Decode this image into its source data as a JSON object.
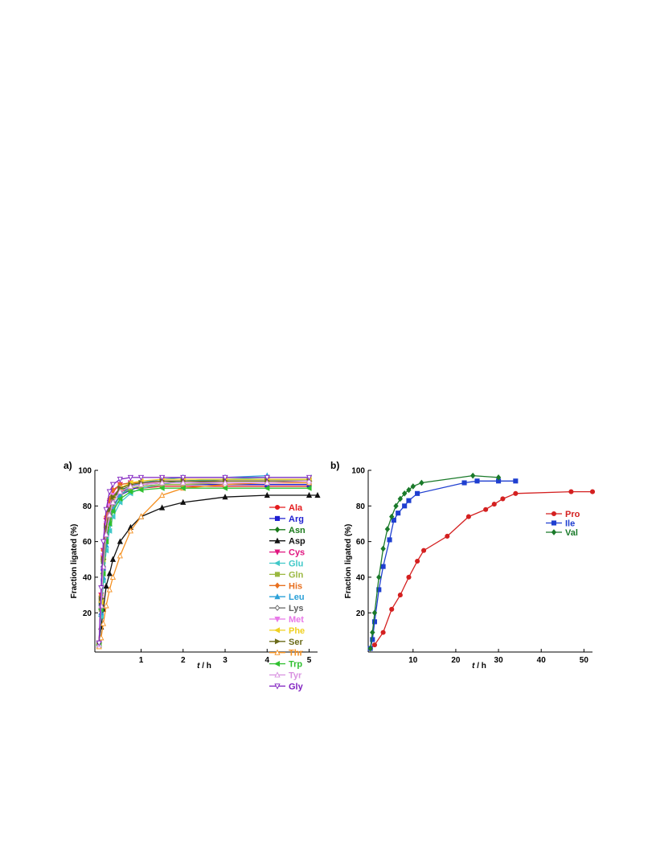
{
  "chart_data": [
    {
      "panel": "a)",
      "type": "line",
      "xlabel_italic": "t",
      "xlabel_unit": "/ h",
      "ylabel": "Fraction ligated (%)",
      "xlim": [
        -0.1,
        5.2
      ],
      "ylim": [
        -2,
        100
      ],
      "xticks": [
        1,
        2,
        3,
        4,
        5
      ],
      "yticks": [
        20,
        40,
        60,
        80,
        100
      ],
      "legend_position": "right",
      "series": [
        {
          "name": "Ala",
          "color": "#e41a1c",
          "marker": "circle",
          "x": [
            0,
            0.05,
            0.1,
            0.17,
            0.25,
            0.33,
            0.5,
            0.75,
            1,
            1.5,
            2,
            3,
            4,
            5
          ],
          "y": [
            2,
            28,
            52,
            70,
            80,
            85,
            88,
            90,
            90,
            91,
            91,
            91,
            91,
            91
          ]
        },
        {
          "name": "Arg",
          "color": "#1f1fd0",
          "marker": "square",
          "x": [
            0,
            0.05,
            0.1,
            0.17,
            0.25,
            0.33,
            0.5,
            0.75,
            1,
            1.5,
            2,
            3,
            4,
            5
          ],
          "y": [
            3,
            25,
            45,
            62,
            74,
            80,
            86,
            89,
            91,
            92,
            92,
            92,
            92,
            92
          ]
        },
        {
          "name": "Asn",
          "color": "#1a7a1a",
          "marker": "diamond",
          "x": [
            0,
            0.05,
            0.1,
            0.17,
            0.25,
            0.33,
            0.5,
            0.75,
            1,
            1.5,
            2,
            3,
            4,
            5
          ],
          "y": [
            3,
            25,
            48,
            68,
            78,
            84,
            89,
            91,
            92,
            93,
            94,
            95,
            95,
            95
          ]
        },
        {
          "name": "Asp",
          "color": "#111111",
          "marker": "triangle",
          "x": [
            0,
            0.05,
            0.1,
            0.17,
            0.25,
            0.33,
            0.5,
            0.75,
            1,
            1.5,
            2,
            3,
            4,
            5,
            5.2
          ],
          "y": [
            2,
            12,
            22,
            35,
            42,
            50,
            60,
            68,
            74,
            79,
            82,
            85,
            86,
            86,
            86
          ]
        },
        {
          "name": "Cys",
          "color": "#e0157f",
          "marker": "triangle-down",
          "x": [
            0,
            0.05,
            0.1,
            0.17,
            0.25,
            0.33,
            0.5,
            0.75,
            1,
            1.5,
            2,
            3,
            4,
            5
          ],
          "y": [
            3,
            30,
            55,
            72,
            82,
            88,
            92,
            93,
            93,
            94,
            94,
            94,
            94,
            94
          ]
        },
        {
          "name": "Glu",
          "color": "#40c8c8",
          "marker": "triangle-left",
          "x": [
            0,
            0.05,
            0.1,
            0.17,
            0.25,
            0.33,
            0.5,
            0.75,
            1,
            1.5,
            2,
            3,
            4,
            5
          ],
          "y": [
            2,
            18,
            38,
            55,
            66,
            74,
            82,
            87,
            90,
            92,
            94,
            95,
            96,
            96
          ]
        },
        {
          "name": "Gln",
          "color": "#9ab840",
          "marker": "square",
          "x": [
            0,
            0.05,
            0.1,
            0.17,
            0.25,
            0.33,
            0.5,
            0.75,
            1,
            1.5,
            2,
            3,
            4,
            5
          ],
          "y": [
            2,
            22,
            42,
            60,
            72,
            79,
            86,
            90,
            91,
            92,
            92,
            93,
            93,
            93
          ]
        },
        {
          "name": "His",
          "color": "#e87020",
          "marker": "diamond",
          "x": [
            0,
            0.05,
            0.1,
            0.17,
            0.25,
            0.33,
            0.5,
            0.75,
            1,
            1.5,
            2,
            3,
            4,
            5
          ],
          "y": [
            3,
            30,
            55,
            74,
            84,
            89,
            92,
            93,
            93,
            93,
            93,
            93,
            93,
            93
          ]
        },
        {
          "name": "Leu",
          "color": "#2aa0d8",
          "marker": "triangle",
          "x": [
            0,
            0.05,
            0.1,
            0.17,
            0.25,
            0.33,
            0.5,
            0.75,
            1,
            1.5,
            2,
            3,
            4
          ],
          "y": [
            2,
            20,
            40,
            58,
            70,
            78,
            86,
            91,
            93,
            95,
            96,
            96,
            97
          ]
        },
        {
          "name": "Lys",
          "color": "#606060",
          "marker": "diamond-open",
          "x": [
            0,
            0.05,
            0.1,
            0.17,
            0.25,
            0.33,
            0.5,
            0.75,
            1,
            1.5,
            2,
            3,
            4,
            5
          ],
          "y": [
            2,
            24,
            46,
            64,
            75,
            82,
            88,
            91,
            92,
            93,
            93,
            94,
            94,
            94
          ]
        },
        {
          "name": "Met",
          "color": "#e878e8",
          "marker": "triangle-down",
          "x": [
            0,
            0.05,
            0.1,
            0.17,
            0.25,
            0.33,
            0.5,
            0.75,
            1,
            1.5,
            2,
            3,
            4,
            5
          ],
          "y": [
            3,
            28,
            52,
            70,
            80,
            86,
            90,
            92,
            93,
            93,
            93,
            93,
            93,
            93
          ]
        },
        {
          "name": "Phe",
          "color": "#f0d020",
          "marker": "triangle-left",
          "x": [
            0,
            0.05,
            0.1,
            0.17,
            0.25,
            0.33,
            0.5,
            0.75,
            1,
            1.5,
            2,
            3,
            4,
            5
          ],
          "y": [
            2,
            26,
            50,
            68,
            78,
            85,
            90,
            93,
            94,
            95,
            95,
            95,
            95,
            95
          ]
        },
        {
          "name": "Ser",
          "color": "#6b6b1a",
          "marker": "triangle-right",
          "x": [
            0,
            0.05,
            0.1,
            0.17,
            0.25,
            0.33,
            0.5,
            0.75,
            1,
            1.5,
            2,
            3,
            4,
            5
          ],
          "y": [
            3,
            28,
            50,
            68,
            78,
            85,
            90,
            92,
            93,
            94,
            94,
            94,
            94,
            94
          ]
        },
        {
          "name": "Thr",
          "color": "#f59020",
          "marker": "triangle-open",
          "x": [
            0,
            0.05,
            0.1,
            0.17,
            0.25,
            0.33,
            0.5,
            0.75,
            1,
            1.5,
            2,
            3,
            4,
            5
          ],
          "y": [
            1,
            6,
            14,
            24,
            33,
            40,
            52,
            66,
            74,
            86,
            90,
            92,
            93,
            93
          ]
        },
        {
          "name": "Trp",
          "color": "#30c030",
          "marker": "triangle-left",
          "x": [
            0,
            0.05,
            0.1,
            0.17,
            0.25,
            0.33,
            0.5,
            0.75,
            1,
            1.5,
            2,
            3,
            4,
            5
          ],
          "y": [
            2,
            22,
            42,
            60,
            70,
            77,
            84,
            88,
            89,
            90,
            90,
            90,
            90,
            90
          ]
        },
        {
          "name": "Tyr",
          "color": "#d890e0",
          "marker": "triangle-open",
          "x": [
            0,
            0.05,
            0.1,
            0.17,
            0.25,
            0.33,
            0.5,
            0.75,
            1,
            1.5,
            2,
            3,
            4,
            5
          ],
          "y": [
            2,
            24,
            46,
            64,
            75,
            82,
            88,
            91,
            92,
            93,
            93,
            93,
            93,
            94
          ]
        },
        {
          "name": "Gly",
          "color": "#8020c0",
          "marker": "triangle-down-open",
          "x": [
            0,
            0.05,
            0.1,
            0.17,
            0.25,
            0.33,
            0.5,
            0.75,
            1,
            1.5,
            2,
            3,
            4,
            5
          ],
          "y": [
            3,
            34,
            60,
            78,
            88,
            92,
            95,
            96,
            96,
            96,
            96,
            96,
            96,
            96
          ]
        }
      ]
    },
    {
      "panel": "b)",
      "type": "line",
      "xlabel_italic": "t",
      "xlabel_unit": "/ h",
      "ylabel": "Fraction ligated (%)",
      "xlim": [
        -0.5,
        52
      ],
      "ylim": [
        -2,
        100
      ],
      "xticks": [
        10,
        20,
        30,
        40,
        50
      ],
      "yticks": [
        20,
        40,
        60,
        80,
        100
      ],
      "legend_position": "right",
      "series": [
        {
          "name": "Pro",
          "color": "#d42020",
          "marker": "circle",
          "x": [
            0,
            1,
            3,
            5,
            7,
            9,
            11,
            12.5,
            18,
            23,
            27,
            29,
            31,
            34,
            47,
            52
          ],
          "y": [
            0,
            2,
            9,
            22,
            30,
            40,
            49,
            55,
            63,
            74,
            78,
            81,
            84,
            87,
            88,
            88
          ]
        },
        {
          "name": "Ile",
          "color": "#1f3fd0",
          "marker": "square",
          "x": [
            0,
            0.5,
            1,
            2,
            3,
            4.5,
            5.5,
            6.5,
            8,
            9,
            11,
            22,
            25,
            30,
            34
          ],
          "y": [
            0,
            5,
            15,
            33,
            46,
            61,
            72,
            76,
            80,
            83,
            87,
            93,
            94,
            94,
            94
          ]
        },
        {
          "name": "Val",
          "color": "#1a7a2a",
          "marker": "diamond",
          "x": [
            0,
            0.5,
            1,
            2,
            3,
            4,
            5,
            6,
            7,
            8,
            9,
            10,
            12,
            24,
            30
          ],
          "y": [
            0,
            9,
            20,
            40,
            56,
            67,
            74,
            80,
            84,
            87,
            89,
            91,
            93,
            97,
            96
          ]
        }
      ]
    }
  ]
}
